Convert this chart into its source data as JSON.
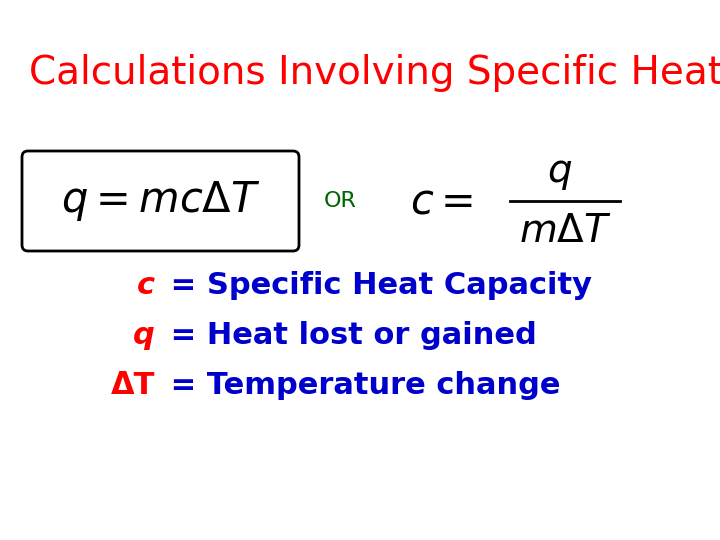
{
  "title": "Calculations Involving Specific Heat",
  "title_color": "#FF0000",
  "title_fontsize": 28,
  "title_font": "Comic Sans MS",
  "or_text": "OR",
  "or_color": "#006400",
  "eq_color": "#000000",
  "line1_label": "c",
  "line1_label_color": "#FF0000",
  "line1_eq": " = Specific Heat Capacity",
  "line2_label": "q",
  "line2_label_color": "#FF0000",
  "line2_eq": " = Heat lost or gained",
  "line3_label": "ΔT",
  "line3_label_color": "#FF0000",
  "line3_eq": " = Temperature change",
  "def_color": "#0000CC",
  "def_fontsize": 22,
  "def_font": "Arial",
  "background_color": "#FFFFFF"
}
